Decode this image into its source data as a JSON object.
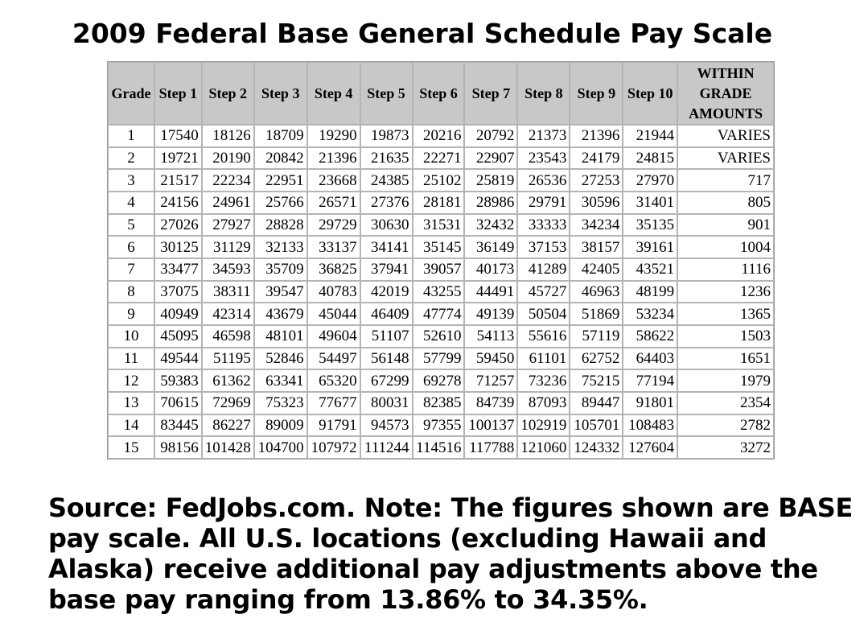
{
  "title": "2009 Federal Base General Schedule Pay Scale",
  "table": {
    "headers": [
      "Grade",
      "Step 1",
      "Step 2",
      "Step 3",
      "Step 4",
      "Step 5",
      "Step 6",
      "Step 7",
      "Step 8",
      "Step 9",
      "Step 10",
      "WITHIN GRADE AMOUNTS"
    ],
    "rows": [
      [
        "1",
        "17540",
        "18126",
        "18709",
        "19290",
        "19873",
        "20216",
        "20792",
        "21373",
        "21396",
        "21944",
        "VARIES"
      ],
      [
        "2",
        "19721",
        "20190",
        "20842",
        "21396",
        "21635",
        "22271",
        "22907",
        "23543",
        "24179",
        "24815",
        "VARIES"
      ],
      [
        "3",
        "21517",
        "22234",
        "22951",
        "23668",
        "24385",
        "25102",
        "25819",
        "26536",
        "27253",
        "27970",
        "717"
      ],
      [
        "4",
        "24156",
        "24961",
        "25766",
        "26571",
        "27376",
        "28181",
        "28986",
        "29791",
        "30596",
        "31401",
        "805"
      ],
      [
        "5",
        "27026",
        "27927",
        "28828",
        "29729",
        "30630",
        "31531",
        "32432",
        "33333",
        "34234",
        "35135",
        "901"
      ],
      [
        "6",
        "30125",
        "31129",
        "32133",
        "33137",
        "34141",
        "35145",
        "36149",
        "37153",
        "38157",
        "39161",
        "1004"
      ],
      [
        "7",
        "33477",
        "34593",
        "35709",
        "36825",
        "37941",
        "39057",
        "40173",
        "41289",
        "42405",
        "43521",
        "1116"
      ],
      [
        "8",
        "37075",
        "38311",
        "39547",
        "40783",
        "42019",
        "43255",
        "44491",
        "45727",
        "46963",
        "48199",
        "1236"
      ],
      [
        "9",
        "40949",
        "42314",
        "43679",
        "45044",
        "46409",
        "47774",
        "49139",
        "50504",
        "51869",
        "53234",
        "1365"
      ],
      [
        "10",
        "45095",
        "46598",
        "48101",
        "49604",
        "51107",
        "52610",
        "54113",
        "55616",
        "57119",
        "58622",
        "1503"
      ],
      [
        "11",
        "49544",
        "51195",
        "52846",
        "54497",
        "56148",
        "57799",
        "59450",
        "61101",
        "62752",
        "64403",
        "1651"
      ],
      [
        "12",
        "59383",
        "61362",
        "63341",
        "65320",
        "67299",
        "69278",
        "71257",
        "73236",
        "75215",
        "77194",
        "1979"
      ],
      [
        "13",
        "70615",
        "72969",
        "75323",
        "77677",
        "80031",
        "82385",
        "84739",
        "87093",
        "89447",
        "91801",
        "2354"
      ],
      [
        "14",
        "83445",
        "86227",
        "89009",
        "91791",
        "94573",
        "97355",
        "100137",
        "102919",
        "105701",
        "108483",
        "2782"
      ],
      [
        "15",
        "98156",
        "101428",
        "104700",
        "107972",
        "111244",
        "114516",
        "117788",
        "121060",
        "124332",
        "127604",
        "3272"
      ]
    ]
  },
  "footnote": "Source: FedJobs.com. Note: The figures shown are BASE pay scale. All U.S. locations (excluding Hawaii and Alaska) receive additional pay adjustments above the base pay ranging from 13.86% to 34.35%.",
  "colors": {
    "header_bg": "#c8c8c8",
    "cell_border": "#b4b4b4"
  }
}
